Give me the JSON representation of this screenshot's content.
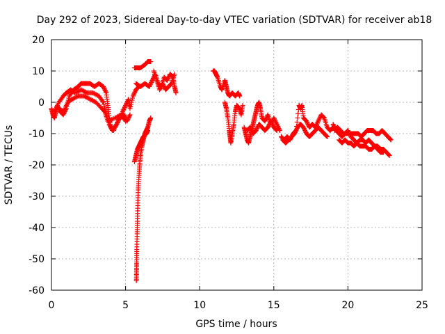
{
  "chart_data": {
    "type": "scatter",
    "title": "Day 292 of 2023, Sidereal Day-to-day VTEC variation (SDTVAR) for receiver ab18",
    "xlabel": "GPS time / hours",
    "ylabel": "SDTVAR / TECUs",
    "xlim": [
      0,
      25
    ],
    "ylim": [
      -60,
      20
    ],
    "xticks": [
      0,
      5,
      10,
      15,
      20,
      25
    ],
    "yticks": [
      20,
      10,
      0,
      -10,
      -20,
      -30,
      -40,
      -50,
      -60
    ],
    "xtick_labels": [
      "0",
      "5",
      "10",
      "15",
      "20",
      "25"
    ],
    "ytick_labels": [
      "20",
      "10",
      "0",
      "-10",
      "-20",
      "-30",
      "-40",
      "-50",
      "-60"
    ],
    "grid": true,
    "marker": "+",
    "color": "#ff0000",
    "series": [
      {
        "name": "SDTVAR",
        "segments": [
          [
            [
              0.0,
              -2
            ],
            [
              0.1,
              -4
            ],
            [
              0.2,
              -5
            ],
            [
              0.3,
              -3
            ],
            [
              0.4,
              -1
            ],
            [
              0.6,
              -3
            ],
            [
              0.8,
              -4
            ],
            [
              1.0,
              -2
            ],
            [
              1.2,
              2
            ],
            [
              1.5,
              4
            ],
            [
              1.8,
              5
            ],
            [
              2.0,
              6
            ],
            [
              2.3,
              6
            ],
            [
              2.6,
              6
            ],
            [
              2.9,
              5
            ],
            [
              3.2,
              6
            ],
            [
              3.5,
              5
            ],
            [
              3.7,
              3
            ],
            [
              3.8,
              -1
            ],
            [
              3.9,
              -5
            ],
            [
              4.0,
              -8
            ],
            [
              4.2,
              -9
            ],
            [
              4.5,
              -6
            ],
            [
              4.8,
              -3
            ],
            [
              5.0,
              -1
            ],
            [
              5.2,
              1
            ],
            [
              5.3,
              -2
            ],
            [
              5.5,
              2
            ],
            [
              5.7,
              4
            ],
            [
              5.9,
              5
            ]
          ],
          [
            [
              0.2,
              -3
            ],
            [
              0.5,
              0
            ],
            [
              0.8,
              2
            ],
            [
              1.0,
              3
            ],
            [
              1.3,
              4
            ],
            [
              1.6,
              3
            ],
            [
              2.0,
              4
            ],
            [
              2.4,
              3
            ],
            [
              2.8,
              3
            ],
            [
              3.2,
              2
            ],
            [
              3.5,
              0
            ],
            [
              3.7,
              -4
            ],
            [
              3.9,
              -7
            ],
            [
              4.1,
              -9
            ],
            [
              4.4,
              -7
            ],
            [
              4.6,
              -5
            ],
            [
              4.9,
              -4
            ],
            [
              5.1,
              -6
            ],
            [
              5.3,
              -4
            ]
          ],
          [
            [
              0.5,
              -2
            ],
            [
              0.8,
              -3
            ],
            [
              1.1,
              0
            ],
            [
              1.4,
              1
            ],
            [
              1.8,
              2
            ],
            [
              2.2,
              2
            ],
            [
              2.6,
              1
            ],
            [
              3.0,
              0
            ],
            [
              3.4,
              -2
            ],
            [
              3.6,
              -3
            ],
            [
              3.8,
              -6
            ],
            [
              4.3,
              -5
            ],
            [
              4.7,
              -4
            ],
            [
              5.0,
              -6
            ]
          ],
          [
            [
              5.6,
              11
            ],
            [
              5.8,
              11
            ],
            [
              6.0,
              11
            ],
            [
              6.3,
              12
            ],
            [
              6.5,
              13
            ],
            [
              6.7,
              13
            ]
          ],
          [
            [
              5.7,
              6
            ],
            [
              6.0,
              5
            ],
            [
              6.3,
              6
            ],
            [
              6.6,
              5
            ],
            [
              6.8,
              7
            ],
            [
              7.0,
              9
            ],
            [
              7.2,
              6
            ],
            [
              7.4,
              5
            ],
            [
              7.6,
              8
            ],
            [
              7.8,
              7
            ],
            [
              8.0,
              9
            ],
            [
              8.2,
              8
            ],
            [
              8.3,
              5
            ],
            [
              8.4,
              3
            ]
          ],
          [
            [
              6.9,
              10
            ],
            [
              7.1,
              7
            ],
            [
              7.3,
              4
            ],
            [
              7.5,
              6
            ],
            [
              7.7,
              4
            ],
            [
              7.9,
              5
            ],
            [
              8.1,
              6
            ],
            [
              8.3,
              9
            ]
          ],
          [
            [
              6.7,
              -5
            ],
            [
              6.6,
              -6
            ],
            [
              6.5,
              -8
            ],
            [
              6.4,
              -9
            ],
            [
              6.3,
              -10
            ],
            [
              6.2,
              -12
            ],
            [
              6.1,
              -14
            ],
            [
              6.0,
              -17
            ],
            [
              5.95,
              -20
            ],
            [
              5.9,
              -24
            ],
            [
              5.85,
              -28
            ],
            [
              5.82,
              -33
            ],
            [
              5.8,
              -38
            ],
            [
              5.78,
              -42
            ],
            [
              5.76,
              -47
            ],
            [
              5.75,
              -51
            ],
            [
              5.74,
              -54
            ],
            [
              5.73,
              -57
            ]
          ],
          [
            [
              5.6,
              -19
            ],
            [
              5.7,
              -17
            ],
            [
              5.8,
              -15
            ],
            [
              5.9,
              -14
            ],
            [
              6.0,
              -13
            ],
            [
              6.1,
              -12
            ],
            [
              6.2,
              -11
            ],
            [
              6.4,
              -10
            ],
            [
              6.5,
              -9
            ]
          ],
          [
            [
              10.9,
              10
            ],
            [
              11.0,
              10
            ],
            [
              11.1,
              9
            ],
            [
              11.2,
              8
            ],
            [
              11.4,
              5
            ],
            [
              11.5,
              4
            ],
            [
              11.7,
              7
            ],
            [
              11.8,
              5
            ],
            [
              11.9,
              3
            ],
            [
              12.0,
              2
            ],
            [
              12.2,
              3
            ],
            [
              12.4,
              2
            ],
            [
              12.6,
              3
            ],
            [
              12.7,
              2
            ]
          ],
          [
            [
              11.7,
              0
            ],
            [
              11.8,
              -2
            ],
            [
              11.9,
              -5
            ],
            [
              12.0,
              -9
            ],
            [
              12.05,
              -11
            ],
            [
              12.1,
              -13
            ],
            [
              12.2,
              -10
            ],
            [
              12.3,
              -7
            ],
            [
              12.4,
              -3
            ],
            [
              12.5,
              -1
            ],
            [
              12.7,
              -2
            ],
            [
              12.8,
              -4
            ],
            [
              12.9,
              -1
            ]
          ],
          [
            [
              13.0,
              -8
            ],
            [
              13.1,
              -10
            ],
            [
              13.2,
              -12
            ],
            [
              13.3,
              -13
            ],
            [
              13.4,
              -11
            ],
            [
              13.5,
              -9
            ],
            [
              13.6,
              -7
            ],
            [
              13.7,
              -5
            ],
            [
              13.8,
              -3
            ],
            [
              13.9,
              -1
            ],
            [
              14.0,
              0
            ],
            [
              14.1,
              -2
            ],
            [
              14.2,
              -5
            ],
            [
              14.4,
              -6
            ],
            [
              14.6,
              -4
            ],
            [
              14.8,
              -7
            ],
            [
              15.0,
              -5
            ],
            [
              15.2,
              -7
            ],
            [
              15.4,
              -9
            ]
          ],
          [
            [
              13.2,
              -9
            ],
            [
              13.4,
              -8
            ],
            [
              13.6,
              -10
            ],
            [
              13.8,
              -9
            ],
            [
              14.0,
              -7
            ],
            [
              14.2,
              -8
            ],
            [
              14.4,
              -9
            ],
            [
              14.6,
              -8
            ],
            [
              14.8,
              -6
            ],
            [
              15.0,
              -8
            ],
            [
              15.2,
              -9
            ]
          ],
          [
            [
              15.5,
              -11
            ],
            [
              15.7,
              -12
            ],
            [
              15.9,
              -11
            ],
            [
              16.1,
              -12
            ],
            [
              16.3,
              -10
            ],
            [
              16.5,
              -9
            ],
            [
              16.7,
              -1
            ],
            [
              16.8,
              -2
            ],
            [
              16.9,
              -1
            ],
            [
              17.0,
              -5
            ],
            [
              17.2,
              -6
            ],
            [
              17.4,
              -8
            ],
            [
              17.6,
              -7
            ],
            [
              17.8,
              -8
            ],
            [
              18.0,
              -6
            ],
            [
              18.2,
              -4
            ],
            [
              18.4,
              -5
            ],
            [
              18.6,
              -8
            ],
            [
              18.8,
              -9
            ],
            [
              19.0,
              -8
            ]
          ],
          [
            [
              15.6,
              -12
            ],
            [
              15.8,
              -13
            ],
            [
              16.0,
              -12
            ],
            [
              16.2,
              -11
            ],
            [
              16.4,
              -10
            ],
            [
              16.6,
              -8
            ],
            [
              16.8,
              -7
            ],
            [
              17.0,
              -8
            ],
            [
              17.2,
              -10
            ],
            [
              17.4,
              -11
            ],
            [
              17.6,
              -10
            ],
            [
              17.8,
              -9
            ],
            [
              18.0,
              -8
            ],
            [
              18.2,
              -9
            ],
            [
              18.4,
              -10
            ],
            [
              18.6,
              -11
            ]
          ],
          [
            [
              19.0,
              -7
            ],
            [
              19.2,
              -9
            ],
            [
              19.4,
              -10
            ],
            [
              19.6,
              -11
            ],
            [
              19.8,
              -10
            ],
            [
              20.0,
              -9
            ],
            [
              20.2,
              -11
            ],
            [
              20.4,
              -12
            ],
            [
              20.6,
              -13
            ],
            [
              20.8,
              -12
            ],
            [
              21.0,
              -12
            ],
            [
              21.2,
              -13
            ],
            [
              21.4,
              -12
            ],
            [
              21.6,
              -13
            ],
            [
              21.8,
              -14
            ],
            [
              22.0,
              -14
            ],
            [
              22.2,
              -15
            ],
            [
              22.4,
              -15
            ],
            [
              22.6,
              -16
            ],
            [
              22.8,
              -17
            ]
          ],
          [
            [
              19.1,
              -9
            ],
            [
              19.3,
              -8
            ],
            [
              19.5,
              -9
            ],
            [
              19.7,
              -10
            ],
            [
              19.9,
              -10
            ],
            [
              20.1,
              -10
            ],
            [
              20.3,
              -10
            ],
            [
              20.5,
              -10
            ],
            [
              20.7,
              -10
            ],
            [
              20.9,
              -11
            ],
            [
              21.1,
              -10
            ],
            [
              21.3,
              -9
            ],
            [
              21.5,
              -9
            ],
            [
              21.7,
              -9
            ],
            [
              21.9,
              -10
            ],
            [
              22.1,
              -10
            ],
            [
              22.3,
              -9
            ],
            [
              22.5,
              -10
            ],
            [
              22.7,
              -11
            ],
            [
              22.9,
              -12
            ]
          ],
          [
            [
              19.4,
              -12
            ],
            [
              19.6,
              -13
            ],
            [
              19.8,
              -12
            ],
            [
              20.0,
              -13
            ],
            [
              20.2,
              -13
            ],
            [
              20.4,
              -14
            ],
            [
              20.6,
              -13
            ],
            [
              20.8,
              -14
            ],
            [
              21.0,
              -14
            ],
            [
              21.2,
              -14
            ],
            [
              21.4,
              -15
            ],
            [
              21.6,
              -15
            ],
            [
              21.8,
              -14
            ],
            [
              22.0,
              -15
            ],
            [
              22.2,
              -16
            ],
            [
              22.4,
              -16
            ]
          ]
        ]
      }
    ]
  }
}
